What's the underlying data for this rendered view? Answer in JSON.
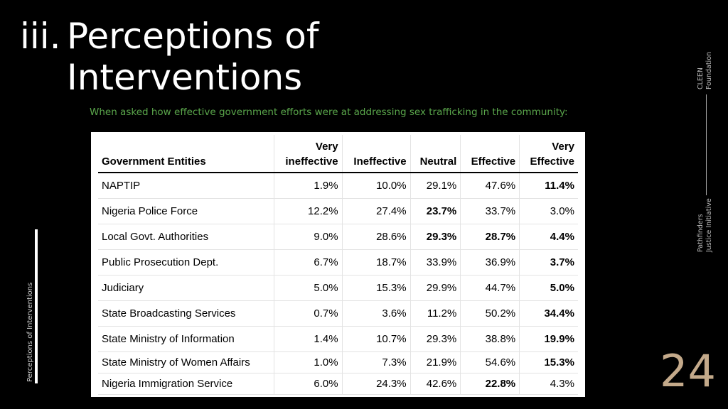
{
  "title": {
    "number": "iii.",
    "line1": "Perceptions of",
    "line2": "Interventions"
  },
  "subtitle": "When asked how effective  government efforts were at addressing sex trafficking in the community:",
  "side_label": "Perceptions of Interventions",
  "brand_cleen": [
    "CLEEN",
    "Foundation"
  ],
  "brand_pji": [
    "Pathfinders",
    "Justice Initiative"
  ],
  "page_number": "24",
  "table": {
    "headers": [
      "Government Entities",
      "Very\nineffective",
      "Ineffective",
      "Neutral",
      "Effective",
      "Very\nEffective"
    ],
    "rows": [
      {
        "entity": "NAPTIP",
        "values": [
          "1.9%",
          "10.0%",
          "29.1%",
          "47.6%",
          "11.4%"
        ],
        "bold": [
          4
        ]
      },
      {
        "entity": "Nigeria Police Force",
        "values": [
          "12.2%",
          "27.4%",
          "23.7%",
          "33.7%",
          "3.0%"
        ],
        "bold": [
          2
        ]
      },
      {
        "entity": "Local Govt. Authorities",
        "values": [
          "9.0%",
          "28.6%",
          "29.3%",
          "28.7%",
          "4.4%"
        ],
        "bold": [
          2,
          3,
          4
        ]
      },
      {
        "entity": "Public Prosecution Dept.",
        "values": [
          "6.7%",
          "18.7%",
          "33.9%",
          "36.9%",
          "3.7%"
        ],
        "bold": [
          4
        ]
      },
      {
        "entity": "Judiciary",
        "values": [
          "5.0%",
          "15.3%",
          "29.9%",
          "44.7%",
          "5.0%"
        ],
        "bold": [
          4
        ]
      },
      {
        "entity": "State Broadcasting Services",
        "values": [
          "0.7%",
          "3.6%",
          "11.2%",
          "50.2%",
          "34.4%"
        ],
        "bold": [
          4
        ]
      },
      {
        "entity": "State Ministry of Information",
        "values": [
          "1.4%",
          "10.7%",
          "29.3%",
          "38.8%",
          "19.9%"
        ],
        "bold": [
          4
        ]
      },
      {
        "entity": "State Ministry of Women Affairs",
        "values": [
          "1.0%",
          "7.3%",
          "21.9%",
          "54.6%",
          "15.3%"
        ],
        "bold": [
          4
        ]
      },
      {
        "entity": "Nigeria Immigration Service",
        "values": [
          "6.0%",
          "24.3%",
          "42.6%",
          "22.8%",
          "4.3%"
        ],
        "bold": [
          3
        ]
      }
    ]
  }
}
